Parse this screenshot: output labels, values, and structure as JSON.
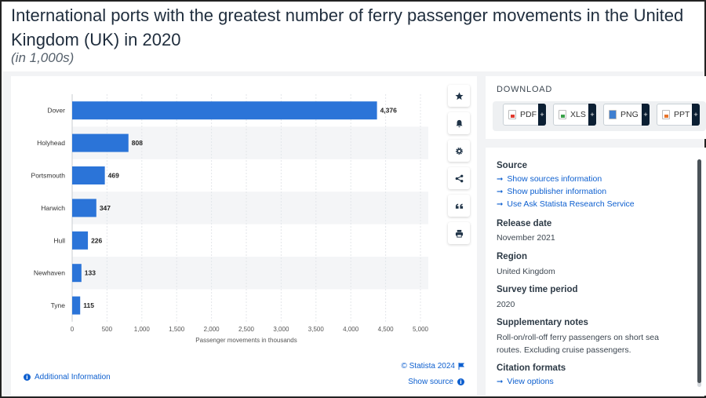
{
  "page": {
    "title_line1": "International ports with the greatest number of ferry passenger movements in the United",
    "title_line2": "Kingdom (UK) in 2020",
    "subtitle": "(in 1,000s)"
  },
  "chart_data": {
    "type": "bar",
    "orientation": "horizontal",
    "categories": [
      "Dover",
      "Holyhead",
      "Portsmouth",
      "Harwich",
      "Hull",
      "Newhaven",
      "Tyne"
    ],
    "values": [
      4376,
      808,
      469,
      347,
      226,
      133,
      115
    ],
    "value_labels": [
      "4,376",
      "808",
      "469",
      "347",
      "226",
      "133",
      "115"
    ],
    "xlabel": "Passenger movements in thousands",
    "xlim": [
      0,
      5000
    ],
    "xticks": [
      0,
      500,
      1000,
      1500,
      2000,
      2500,
      3000,
      3500,
      4000,
      4500,
      5000
    ],
    "xtick_labels": [
      "0",
      "500",
      "1,000",
      "1,500",
      "2,000",
      "2,500",
      "3,000",
      "3,500",
      "4,000",
      "4,500",
      "5,000"
    ],
    "bar_color": "#2b74d8",
    "grid": "vertical",
    "row_banding": true
  },
  "chart_footer": {
    "copyright": "© Statista 2024",
    "additional_info": "Additional Information",
    "show_source": "Show source"
  },
  "toolbar": {
    "items": [
      "star-icon",
      "bell-icon",
      "gear-icon",
      "share-icon",
      "quote-icon",
      "print-icon"
    ]
  },
  "download": {
    "label": "DOWNLOAD",
    "buttons": [
      {
        "label": "PDF",
        "color": "#e03b2f"
      },
      {
        "label": "XLS",
        "color": "#3aa14a"
      },
      {
        "label": "PNG",
        "color": "#3f7fd0"
      },
      {
        "label": "PPT",
        "color": "#e8742a"
      }
    ],
    "plus": "+"
  },
  "info": {
    "source_heading": "Source",
    "source_links": [
      "Show sources information",
      "Show publisher information",
      "Use Ask Statista Research Service"
    ],
    "release_heading": "Release date",
    "release_value": "November 2021",
    "region_heading": "Region",
    "region_value": "United Kingdom",
    "survey_heading": "Survey time period",
    "survey_value": "2020",
    "notes_heading": "Supplementary notes",
    "notes_value": "Roll-on/roll-off ferry passengers on short sea routes. Excluding cruise passengers.",
    "citation_heading": "Citation formats",
    "citation_link": "View options"
  },
  "colors": {
    "accent": "#0d5fcf",
    "bar": "#2b74d8",
    "panel_bg": "#f2f3f5"
  }
}
